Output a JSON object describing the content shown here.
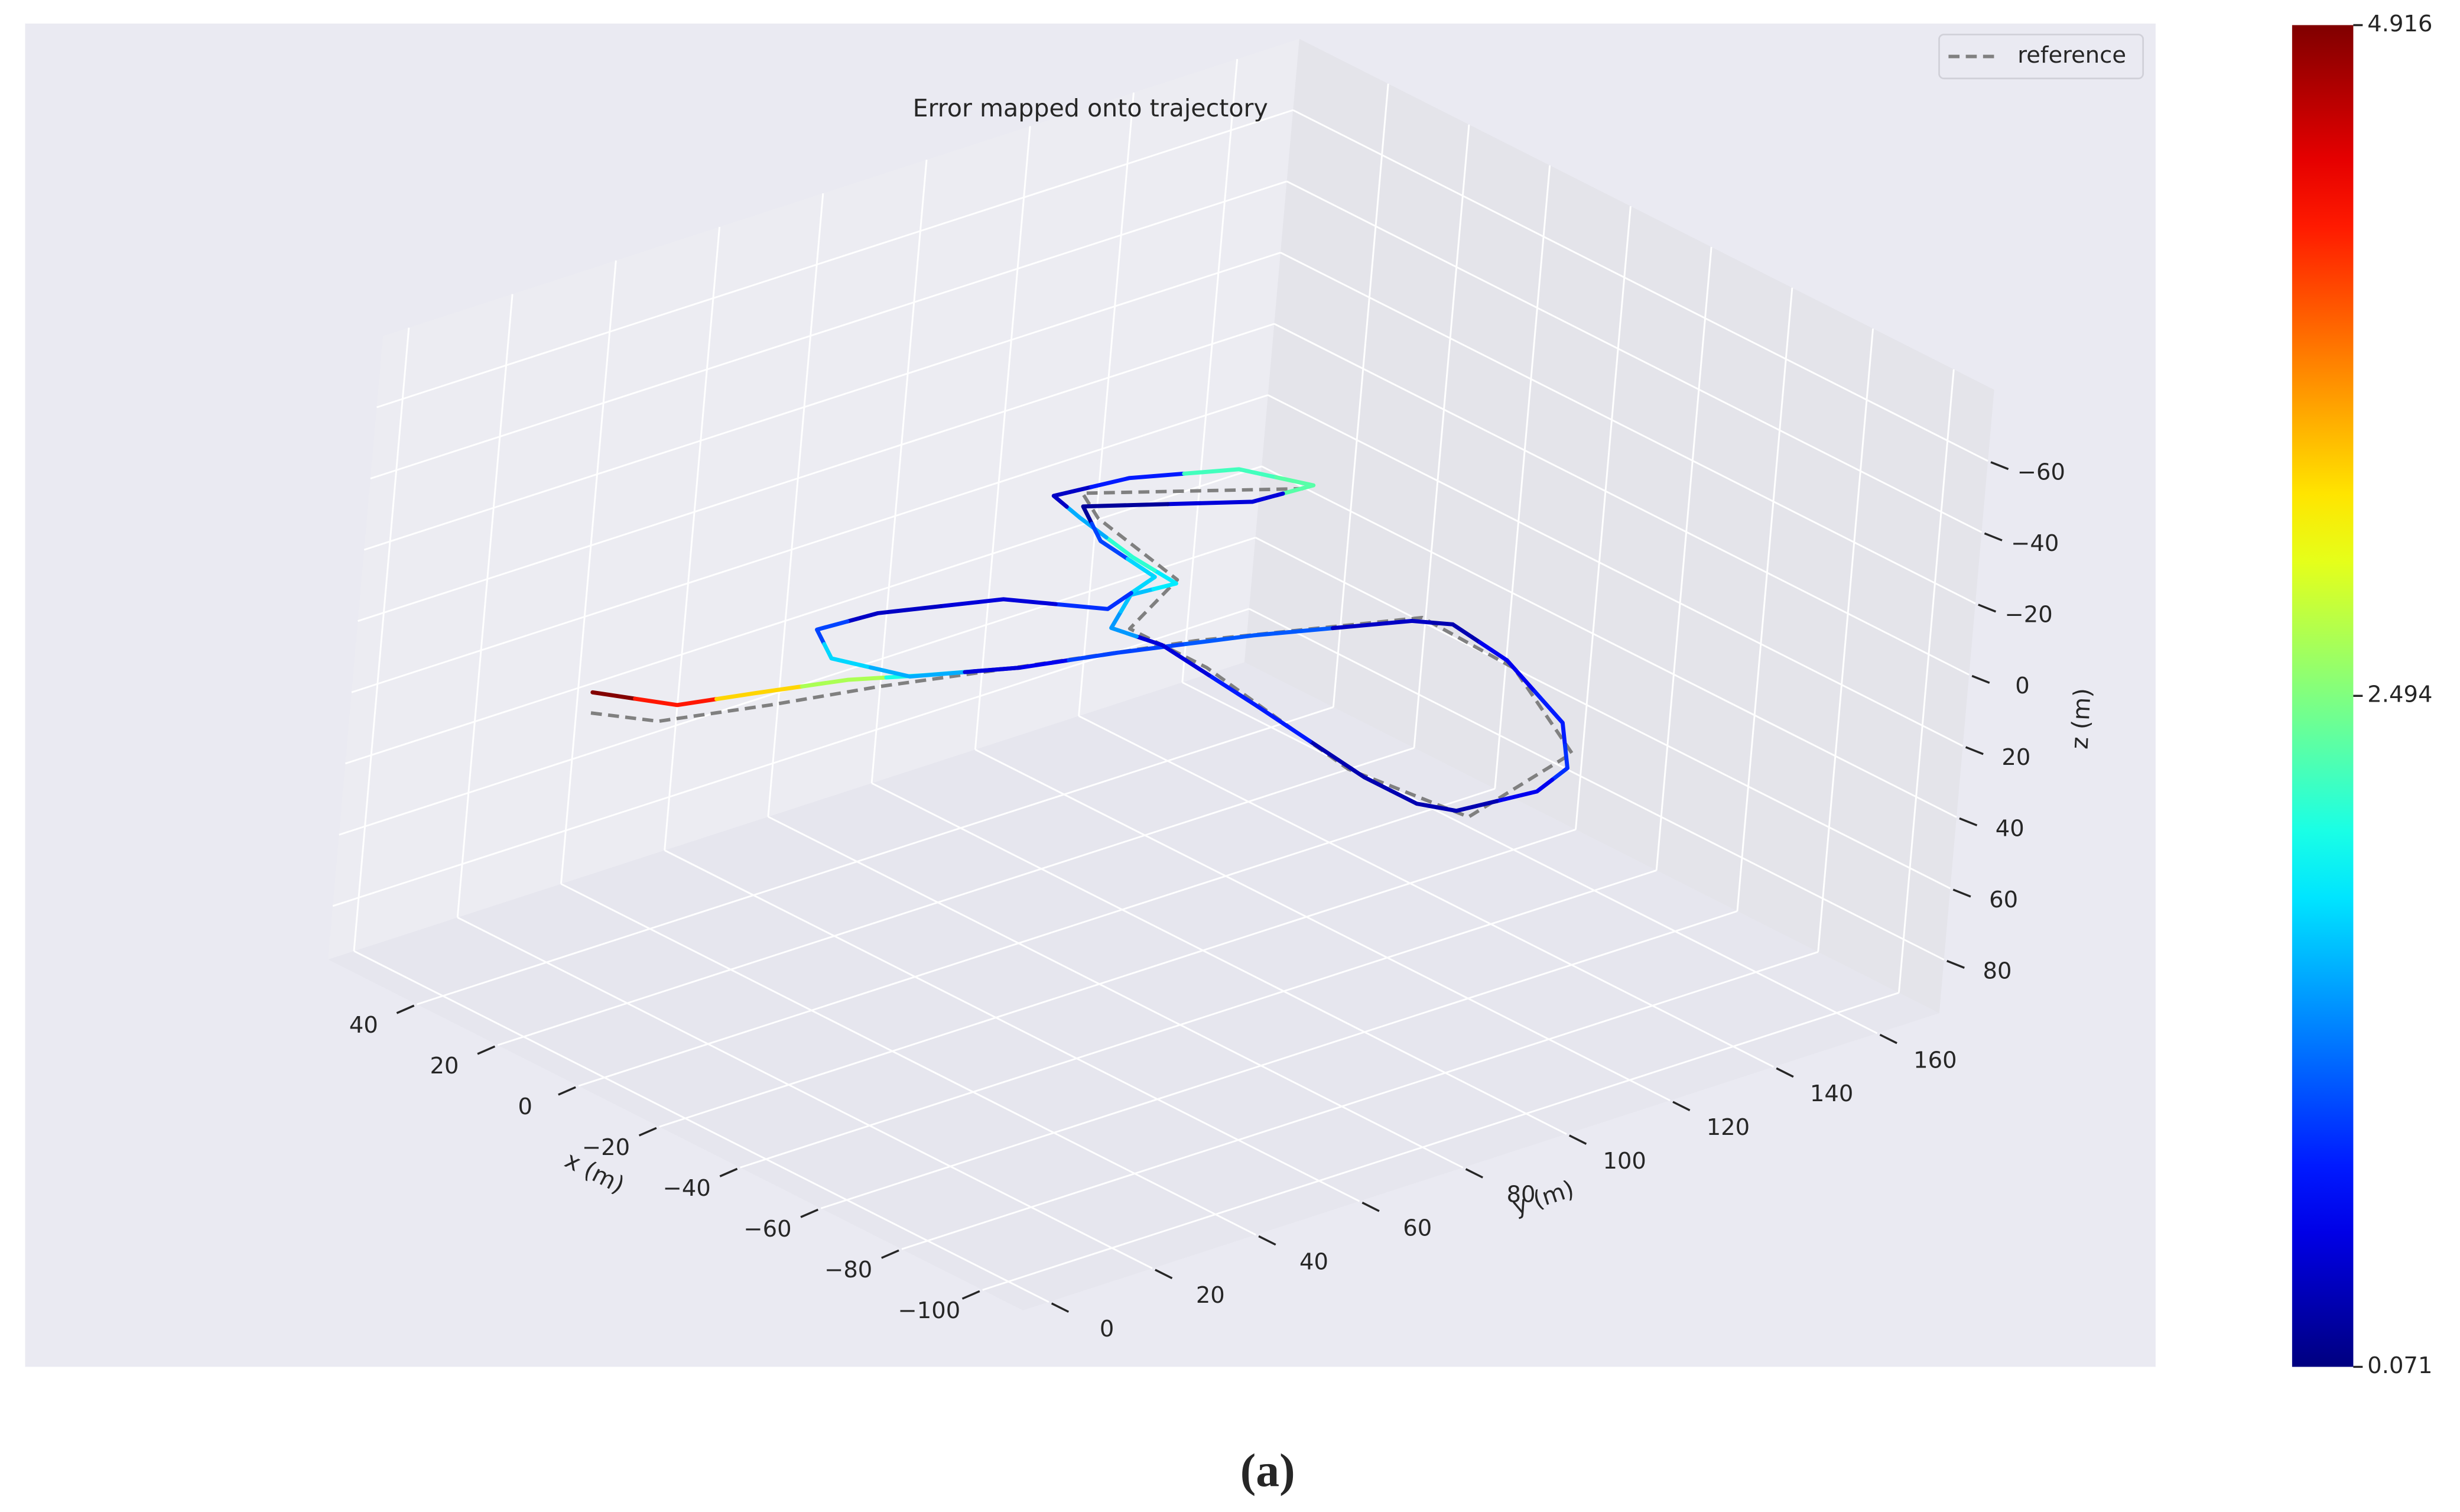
{
  "chart_data": {
    "type": "line3d",
    "title": "Error mapped onto trajectory",
    "xlabel": "x (m)",
    "ylabel": "y (m)",
    "zlabel": "z (m)",
    "xlim": [
      -110,
      62
    ],
    "ylim": [
      -5,
      172
    ],
    "zlim": [
      -80,
      95
    ],
    "xticks": [
      {
        "value": -100,
        "label": "−100"
      },
      {
        "value": -80,
        "label": "−80"
      },
      {
        "value": -60,
        "label": "−60"
      },
      {
        "value": -40,
        "label": "−40"
      },
      {
        "value": -20,
        "label": "−20"
      },
      0,
      20,
      40
    ],
    "yticks": [
      0,
      20,
      40,
      60,
      80,
      100,
      120,
      140,
      160
    ],
    "zticks": [
      {
        "value": -60,
        "label": "−60"
      },
      {
        "value": -40,
        "label": "−40"
      },
      {
        "value": -20,
        "label": "−20"
      },
      0,
      20,
      40,
      60,
      80
    ],
    "grid": true,
    "legend": "upper right",
    "series": [
      {
        "name": "reference",
        "color": "#808080",
        "style": "dashed",
        "x": [
          12,
          3,
          -3,
          -8,
          -15,
          -25,
          -40,
          -64,
          -95,
          -104,
          -78,
          -34,
          -15,
          -5,
          21,
          30,
          10
        ],
        "y": [
          1,
          7,
          24,
          41,
          60,
          89,
          121,
          120,
          107,
          80,
          77,
          84,
          84,
          101,
          106,
          110,
          137
        ],
        "z": [
          0,
          0,
          0,
          0,
          0,
          0,
          0,
          0,
          0,
          0,
          0,
          0,
          0,
          0,
          0,
          0,
          0
        ]
      },
      {
        "colormap": "jet",
        "x": [
          18,
          6,
          2,
          -3,
          -9,
          -16,
          -21,
          -29,
          -40,
          -45,
          -61,
          -85,
          -99,
          -103,
          -101,
          -95,
          -82,
          -50,
          -23,
          -13,
          -5,
          -6,
          6,
          23,
          32,
          30,
          22,
          10,
          11,
          26,
          14,
          -2,
          -7,
          6,
          14,
          15,
          5,
          -8,
          -16
        ],
        "y": [
          6,
          13,
          25,
          39,
          49,
          62,
          77,
          97,
          119,
          123,
          121,
          113,
          103,
          94,
          80,
          77,
          77,
          81,
          84,
          82,
          92,
          100,
          101,
          104,
          106,
          119,
          134,
          139,
          128,
          107,
          101,
          99,
          86,
          76,
          58,
          47,
          42,
          47,
          62
        ],
        "z": [
          0,
          0,
          0,
          0,
          0,
          0,
          0,
          0,
          0,
          0,
          0,
          0,
          0,
          0,
          0,
          0,
          0,
          0,
          0,
          0,
          0,
          0,
          0,
          0,
          0,
          0,
          0,
          0,
          0,
          0,
          0,
          0,
          0,
          0,
          0,
          0,
          0,
          0,
          0
        ],
        "error": [
          4.9,
          4.2,
          3.3,
          2.7,
          2.0,
          0.6,
          1.0,
          1.1,
          0.4,
          0.3,
          0.6,
          0.8,
          0.9,
          0.6,
          0.3,
          0.3,
          0.3,
          0.8,
          0.5,
          1.4,
          1.6,
          1.8,
          2.1,
          1.5,
          0.4,
          0.8,
          2.2,
          2.3,
          0.5,
          0.2,
          1.0,
          1.7,
          0.9,
          0.5,
          0.4,
          1.0,
          1.7,
          1.5,
          0.5
        ]
      }
    ],
    "colorbar": {
      "clim": [
        0.071,
        4.916
      ],
      "ticks": [
        0.071,
        2.494,
        4.916
      ]
    }
  },
  "caption": "(a)"
}
